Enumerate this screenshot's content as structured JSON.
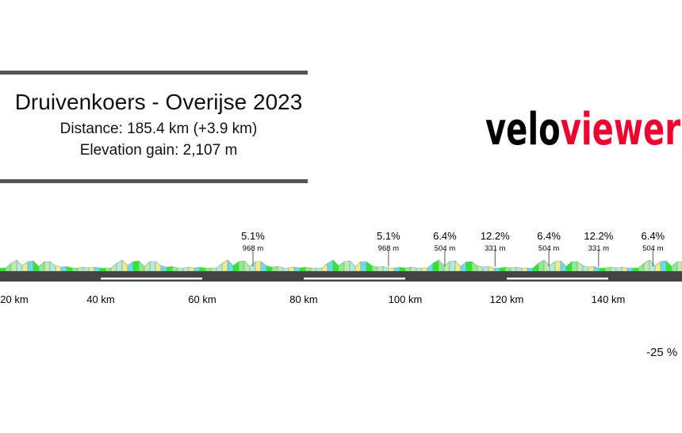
{
  "header": {
    "title": "Druivenkoers - Overijse 2023",
    "distance": "Distance: 185.4 km (+3.9 km)",
    "elevation_gain": "Elevation gain: 2,107 m"
  },
  "logo": {
    "part1": "velo",
    "part2": "viewer",
    "colors": {
      "part1": "#000000",
      "part2": "#f0002e"
    }
  },
  "chart_data": {
    "type": "area",
    "title": "",
    "xlabel": "",
    "ylabel": "",
    "x_ticks": [
      "20 km",
      "40 km",
      "60 km",
      "80 km",
      "100 km",
      "120 km",
      "140 km"
    ],
    "x_tick_values": [
      20,
      40,
      60,
      80,
      100,
      120,
      140
    ],
    "climbs": [
      {
        "km": 70,
        "gradient": "5.1%",
        "length": "968 m"
      },
      {
        "km": 96.7,
        "gradient": "5.1%",
        "length": "968 m"
      },
      {
        "km": 107.8,
        "gradient": "6.4%",
        "length": "504 m"
      },
      {
        "km": 117.7,
        "gradient": "12.2%",
        "length": "331 m"
      },
      {
        "km": 128.3,
        "gradient": "6.4%",
        "length": "504 m"
      },
      {
        "km": 138.1,
        "gradient": "12.2%",
        "length": "331 m"
      },
      {
        "km": 148.8,
        "gradient": "6.4%",
        "length": "504 m"
      }
    ],
    "loops_km": [
      [
        40,
        60
      ],
      [
        80,
        100
      ],
      [
        120,
        140
      ]
    ],
    "gradient_colors": [
      "#22ee22",
      "#88ee88",
      "#bbeeaa",
      "#aaeedd",
      "#eeee88",
      "#66ddee"
    ],
    "road_color": "#444444"
  },
  "legend": {
    "min_gradient": "-25 %"
  }
}
